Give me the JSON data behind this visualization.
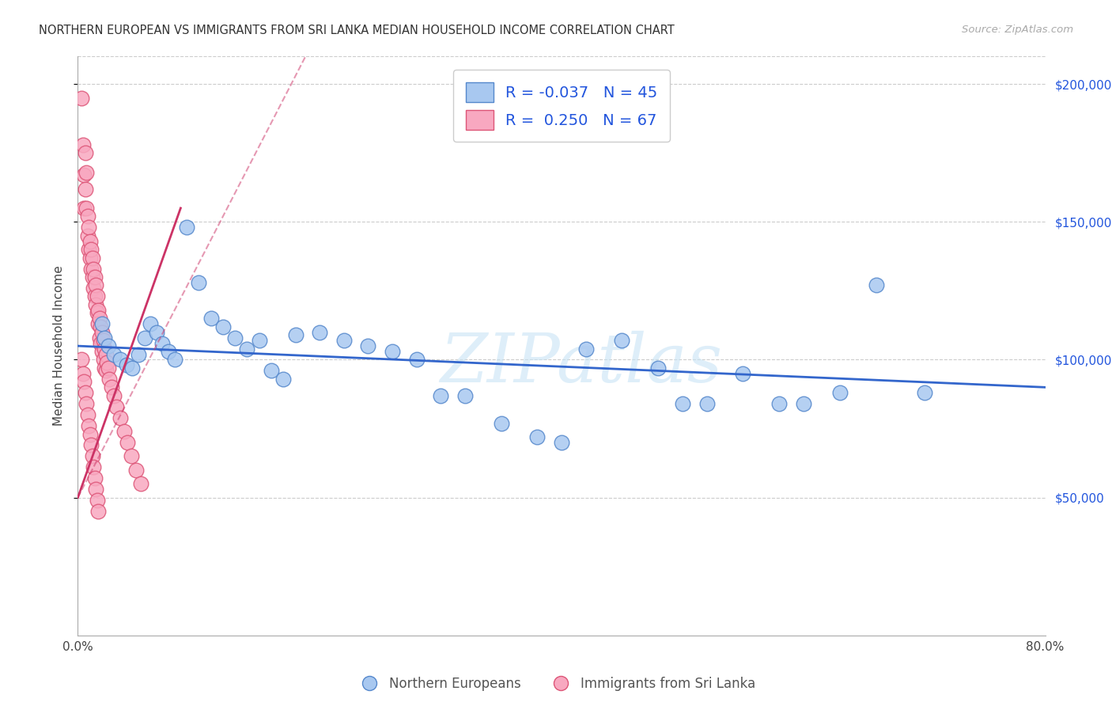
{
  "title": "NORTHERN EUROPEAN VS IMMIGRANTS FROM SRI LANKA MEDIAN HOUSEHOLD INCOME CORRELATION CHART",
  "source": "Source: ZipAtlas.com",
  "ylabel": "Median Household Income",
  "x_min": 0.0,
  "x_max": 0.8,
  "y_min": 0,
  "y_max": 210000,
  "y_ticks": [
    50000,
    100000,
    150000,
    200000
  ],
  "y_tick_labels": [
    "$50,000",
    "$100,000",
    "$150,000",
    "$200,000"
  ],
  "blue_color": "#a8c8f0",
  "pink_color": "#f8a8c0",
  "blue_edge": "#5588cc",
  "pink_edge": "#dd5577",
  "trend_blue_color": "#3366cc",
  "trend_pink_color": "#cc3366",
  "bottom_label_blue": "Northern Europeans",
  "bottom_label_pink": "Immigrants from Sri Lanka",
  "watermark_text": "ZIPatlas",
  "blue_x": [
    0.02,
    0.022,
    0.025,
    0.03,
    0.035,
    0.04,
    0.045,
    0.05,
    0.055,
    0.06,
    0.065,
    0.07,
    0.075,
    0.08,
    0.09,
    0.1,
    0.11,
    0.12,
    0.13,
    0.14,
    0.15,
    0.16,
    0.17,
    0.18,
    0.2,
    0.22,
    0.24,
    0.26,
    0.28,
    0.3,
    0.32,
    0.35,
    0.38,
    0.4,
    0.42,
    0.45,
    0.48,
    0.5,
    0.52,
    0.55,
    0.58,
    0.6,
    0.63,
    0.66,
    0.7
  ],
  "blue_y": [
    113000,
    108000,
    105000,
    102000,
    100000,
    98000,
    97000,
    102000,
    108000,
    113000,
    110000,
    106000,
    103000,
    100000,
    148000,
    128000,
    115000,
    112000,
    108000,
    104000,
    107000,
    96000,
    93000,
    109000,
    110000,
    107000,
    105000,
    103000,
    100000,
    87000,
    87000,
    77000,
    72000,
    70000,
    104000,
    107000,
    97000,
    84000,
    84000,
    95000,
    84000,
    84000,
    88000,
    127000,
    88000
  ],
  "pink_x": [
    0.003,
    0.004,
    0.005,
    0.005,
    0.006,
    0.006,
    0.007,
    0.007,
    0.008,
    0.008,
    0.009,
    0.009,
    0.01,
    0.01,
    0.011,
    0.011,
    0.012,
    0.012,
    0.013,
    0.013,
    0.014,
    0.014,
    0.015,
    0.015,
    0.016,
    0.016,
    0.017,
    0.017,
    0.018,
    0.018,
    0.019,
    0.019,
    0.02,
    0.02,
    0.021,
    0.021,
    0.022,
    0.022,
    0.023,
    0.023,
    0.024,
    0.025,
    0.026,
    0.028,
    0.03,
    0.032,
    0.035,
    0.038,
    0.041,
    0.044,
    0.048,
    0.052,
    0.003,
    0.004,
    0.005,
    0.006,
    0.007,
    0.008,
    0.009,
    0.01,
    0.011,
    0.012,
    0.013,
    0.014,
    0.015,
    0.016,
    0.017
  ],
  "pink_y": [
    195000,
    178000,
    167000,
    155000,
    175000,
    162000,
    168000,
    155000,
    152000,
    145000,
    148000,
    140000,
    143000,
    137000,
    140000,
    133000,
    137000,
    130000,
    133000,
    126000,
    130000,
    123000,
    127000,
    120000,
    123000,
    117000,
    118000,
    113000,
    115000,
    108000,
    112000,
    106000,
    110000,
    103000,
    107000,
    100000,
    104000,
    97000,
    102000,
    96000,
    99000,
    97000,
    93000,
    90000,
    87000,
    83000,
    79000,
    74000,
    70000,
    65000,
    60000,
    55000,
    100000,
    95000,
    92000,
    88000,
    84000,
    80000,
    76000,
    73000,
    69000,
    65000,
    61000,
    57000,
    53000,
    49000,
    45000
  ]
}
